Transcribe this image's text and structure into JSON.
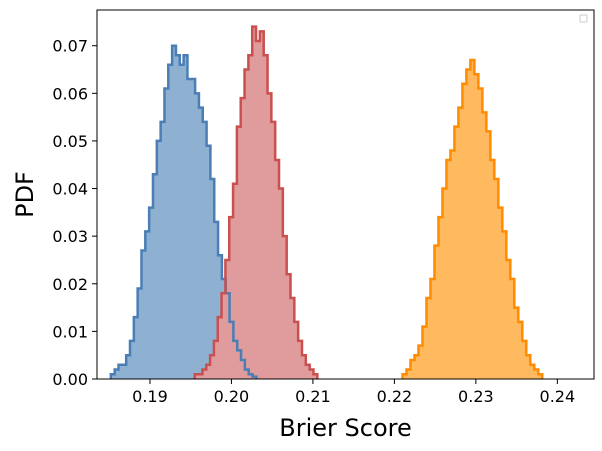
{
  "chart_data": {
    "type": "histogram",
    "xlabel": "Brier Score",
    "ylabel": "PDF",
    "xlim": [
      0.1835,
      0.2445
    ],
    "ylim": [
      0,
      0.0775
    ],
    "xticks": [
      0.19,
      0.2,
      0.21,
      0.22,
      0.23,
      0.24
    ],
    "xtick_labels": [
      "0.19",
      "0.20",
      "0.21",
      "0.22",
      "0.23",
      "0.24"
    ],
    "yticks": [
      0.0,
      0.01,
      0.02,
      0.03,
      0.04,
      0.05,
      0.06,
      0.07
    ],
    "ytick_labels": [
      "0.00",
      "0.01",
      "0.02",
      "0.03",
      "0.04",
      "0.05",
      "0.06",
      "0.07"
    ],
    "grid": false,
    "legend": {
      "placement": "top-right",
      "entries": []
    },
    "series": [
      {
        "color": "#4a7eb5",
        "fill": "#8eb0d1",
        "bin_width": 0.00047,
        "x_start": 0.1852,
        "heights": [
          0.001,
          0.002,
          0.003,
          0.003,
          0.005,
          0.008,
          0.013,
          0.019,
          0.027,
          0.031,
          0.036,
          0.043,
          0.05,
          0.054,
          0.061,
          0.066,
          0.07,
          0.068,
          0.066,
          0.068,
          0.063,
          0.063,
          0.06,
          0.057,
          0.054,
          0.049,
          0.042,
          0.033,
          0.026,
          0.021,
          0.018,
          0.012,
          0.008,
          0.006,
          0.004,
          0.002,
          0.001,
          0.0005
        ]
      },
      {
        "color": "#c9504f",
        "fill": "#e09c9c",
        "bin_width": 0.00047,
        "x_start": 0.1955,
        "heights": [
          0.001,
          0.001,
          0.002,
          0.003,
          0.005,
          0.008,
          0.013,
          0.018,
          0.025,
          0.034,
          0.041,
          0.053,
          0.059,
          0.065,
          0.068,
          0.074,
          0.071,
          0.073,
          0.068,
          0.06,
          0.054,
          0.046,
          0.04,
          0.03,
          0.022,
          0.017,
          0.012,
          0.008,
          0.005,
          0.003,
          0.002,
          0.001
        ]
      },
      {
        "color": "#ff8c00",
        "fill": "#ffb95e",
        "bin_width": 0.00049,
        "x_start": 0.221,
        "heights": [
          0.001,
          0.002,
          0.004,
          0.005,
          0.007,
          0.011,
          0.017,
          0.021,
          0.028,
          0.034,
          0.04,
          0.046,
          0.048,
          0.053,
          0.057,
          0.062,
          0.065,
          0.067,
          0.064,
          0.061,
          0.056,
          0.052,
          0.046,
          0.042,
          0.036,
          0.031,
          0.025,
          0.021,
          0.015,
          0.012,
          0.008,
          0.005,
          0.003,
          0.002,
          0.001
        ]
      }
    ]
  }
}
